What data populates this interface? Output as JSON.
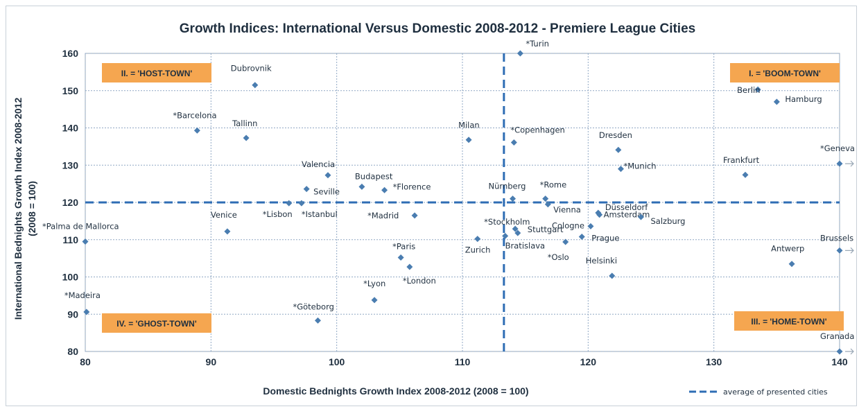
{
  "chart_data": {
    "type": "scatter",
    "title": "Growth Indices: International Versus Domestic 2008-2012  - Premiere League Cities",
    "xlabel": "Domestic Bednights Growth Index 2008-2012 (2008 = 100)",
    "ylabel": "International Bednights Growth Index 2008-2012",
    "ylabel2": "(2008 = 100)",
    "xlim": [
      80,
      140
    ],
    "ylim": [
      80,
      160
    ],
    "xticks": [
      80,
      90,
      100,
      110,
      120,
      130,
      140
    ],
    "yticks": [
      80,
      90,
      100,
      110,
      120,
      130,
      140,
      150,
      160
    ],
    "grid": true,
    "marker_color": "#4a7db0",
    "average_line_color": "#2e6db4",
    "average": {
      "x": 113.3,
      "y": 120
    },
    "legend": {
      "label": "average of presented cities",
      "position": "bottom-right"
    },
    "quadrants": [
      {
        "label": "I. = 'BOOM-TOWN'",
        "position": "top-right"
      },
      {
        "label": "II. = 'HOST-TOWN'",
        "position": "top-left"
      },
      {
        "label": "III. = 'HOME-TOWN'",
        "position": "bottom-right"
      },
      {
        "label": "IV. = 'GHOST-TOWN'",
        "position": "bottom-left"
      }
    ],
    "quadrant_color": "#f5a650",
    "points": [
      {
        "name": "*Turin",
        "x": 114.6,
        "y": 160
      },
      {
        "name": "Dubrovnik",
        "x": 93.5,
        "y": 151.5
      },
      {
        "name": "Berlin",
        "x": 133.5,
        "y": 150.3
      },
      {
        "name": "Hamburg",
        "x": 135,
        "y": 147
      },
      {
        "name": "*Barcelona",
        "x": 88.9,
        "y": 139.3
      },
      {
        "name": "Tallinn",
        "x": 92.8,
        "y": 137.3
      },
      {
        "name": "Milan",
        "x": 110.5,
        "y": 136.8
      },
      {
        "name": "*Copenhagen",
        "x": 114.1,
        "y": 136.1
      },
      {
        "name": "Dresden",
        "x": 122.4,
        "y": 134.1
      },
      {
        "name": "*Geneva",
        "x": 140,
        "y": 130.4
      },
      {
        "name": "*Munich",
        "x": 122.6,
        "y": 129
      },
      {
        "name": "Frankfurt",
        "x": 132.5,
        "y": 127.4
      },
      {
        "name": "Valencia",
        "x": 99.3,
        "y": 127.3
      },
      {
        "name": "Budapest",
        "x": 102,
        "y": 124.2
      },
      {
        "name": "*Florence",
        "x": 103.8,
        "y": 123.3
      },
      {
        "name": "Seville",
        "x": 97.6,
        "y": 123.6
      },
      {
        "name": "Nürnberg",
        "x": 114,
        "y": 121
      },
      {
        "name": "*Rome",
        "x": 116.6,
        "y": 121
      },
      {
        "name": "*Lisbon",
        "x": 96.2,
        "y": 119.8
      },
      {
        "name": "*Istanbul",
        "x": 97.2,
        "y": 119.8
      },
      {
        "name": "Vienna",
        "x": 116.8,
        "y": 119.5
      },
      {
        "name": "Düsseldorf",
        "x": 120.8,
        "y": 117.2
      },
      {
        "name": "Amsterdam",
        "x": 120.9,
        "y": 116.7
      },
      {
        "name": "Salzburg",
        "x": 124.2,
        "y": 116.1
      },
      {
        "name": "*Madrid",
        "x": 106.2,
        "y": 116.5
      },
      {
        "name": "Cologne",
        "x": 120.2,
        "y": 113.6
      },
      {
        "name": "*Stockholm",
        "x": 114.2,
        "y": 112.9
      },
      {
        "name": "Stuttgart",
        "x": 114.4,
        "y": 111.8
      },
      {
        "name": "Venice",
        "x": 91.3,
        "y": 112.2
      },
      {
        "name": "Bratislava",
        "x": 113.4,
        "y": 111
      },
      {
        "name": "Prague",
        "x": 119.5,
        "y": 110.8
      },
      {
        "name": "Zurich",
        "x": 111.2,
        "y": 110.2
      },
      {
        "name": "*Palma de Mallorca",
        "x": 80,
        "y": 109.5
      },
      {
        "name": "*Oslo",
        "x": 118.2,
        "y": 109.4
      },
      {
        "name": "Brussels",
        "x": 140,
        "y": 107.1
      },
      {
        "name": "*Paris",
        "x": 105.1,
        "y": 105.2
      },
      {
        "name": "*London",
        "x": 105.8,
        "y": 102.7
      },
      {
        "name": "Antwerp",
        "x": 136.2,
        "y": 103.5
      },
      {
        "name": "Helsinki",
        "x": 121.9,
        "y": 100.3
      },
      {
        "name": "*Lyon",
        "x": 103,
        "y": 93.8
      },
      {
        "name": "*Madeira",
        "x": 80.1,
        "y": 90.6
      },
      {
        "name": "*Göteborg",
        "x": 98.5,
        "y": 88.3
      },
      {
        "name": "Granada",
        "x": 140,
        "y": 80
      }
    ]
  }
}
